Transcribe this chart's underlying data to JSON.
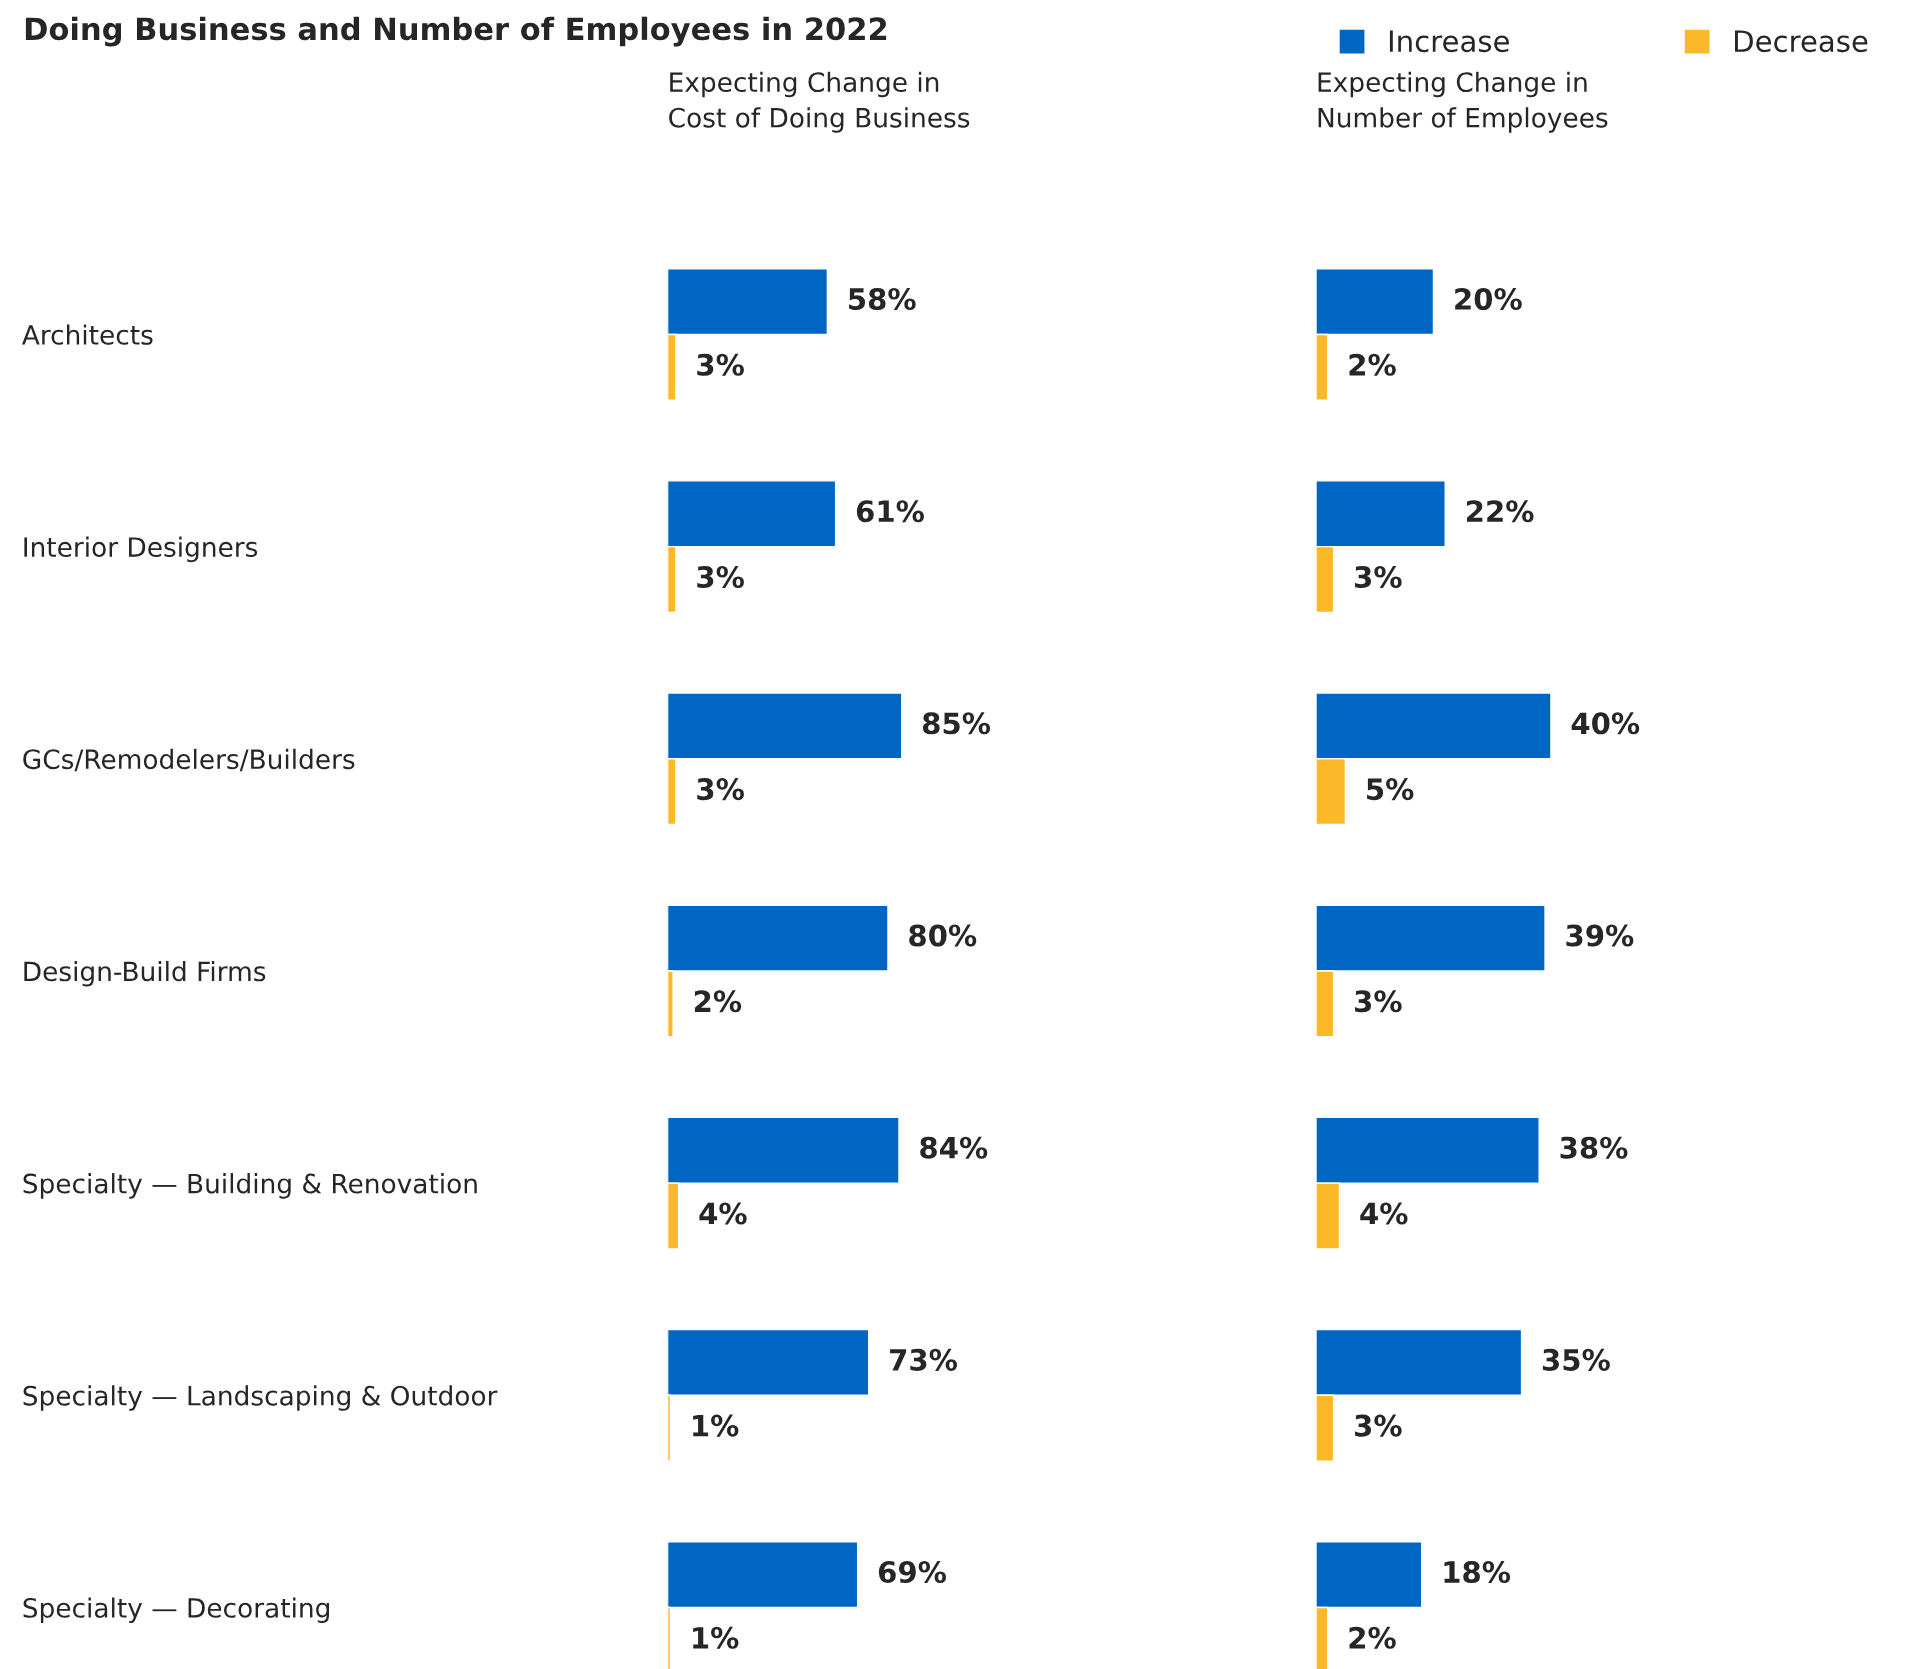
{
  "chart_data": [
    {
      "type": "bar",
      "orientation": "horizontal",
      "title": "Doing Business and Number of Employees in 2022",
      "subtitle": "Expecting Change in\nCost of Doing Business",
      "categories": [
        "Architects",
        "Interior Designers",
        "GCs/Remodelers/Builders",
        "Design-Build Firms",
        "Specialty — Building & Renovation",
        "Specialty — Landscaping & Outdoor",
        "Specialty — Decorating"
      ],
      "series": [
        {
          "name": "Increase",
          "color": "#0066c4",
          "values": [
            58,
            61,
            85,
            80,
            84,
            73,
            69
          ],
          "value_labels": [
            "58%",
            "61%",
            "85%",
            "80%",
            "84%",
            "73%",
            "69%"
          ]
        },
        {
          "name": "Decrease",
          "color": "#fbb829",
          "values": [
            3,
            3,
            3,
            2,
            4,
            1,
            1
          ],
          "value_labels": [
            "3%",
            "3%",
            "3%",
            "2%",
            "4%",
            "1%",
            "1%"
          ]
        }
      ],
      "legend": "top right",
      "tick_labels": "y"
    },
    {
      "type": "bar",
      "orientation": "horizontal",
      "subtitle": "Expecting Change in\nNumber of Employees",
      "series": [
        {
          "color": "#0066c4",
          "values": [
            20,
            22,
            40,
            39,
            38,
            35,
            18
          ],
          "value_labels": [
            "20%",
            "22%",
            "40%",
            "39%",
            "38%",
            "35%",
            "18%"
          ]
        },
        {
          "color": "#fbb829",
          "values": [
            2,
            3,
            5,
            3,
            4,
            3,
            2
          ],
          "value_labels": [
            "2%",
            "3%",
            "5%",
            "3%",
            "4%",
            "3%",
            "2%"
          ]
        }
      ],
      "tick_labels": false
    }
  ]
}
